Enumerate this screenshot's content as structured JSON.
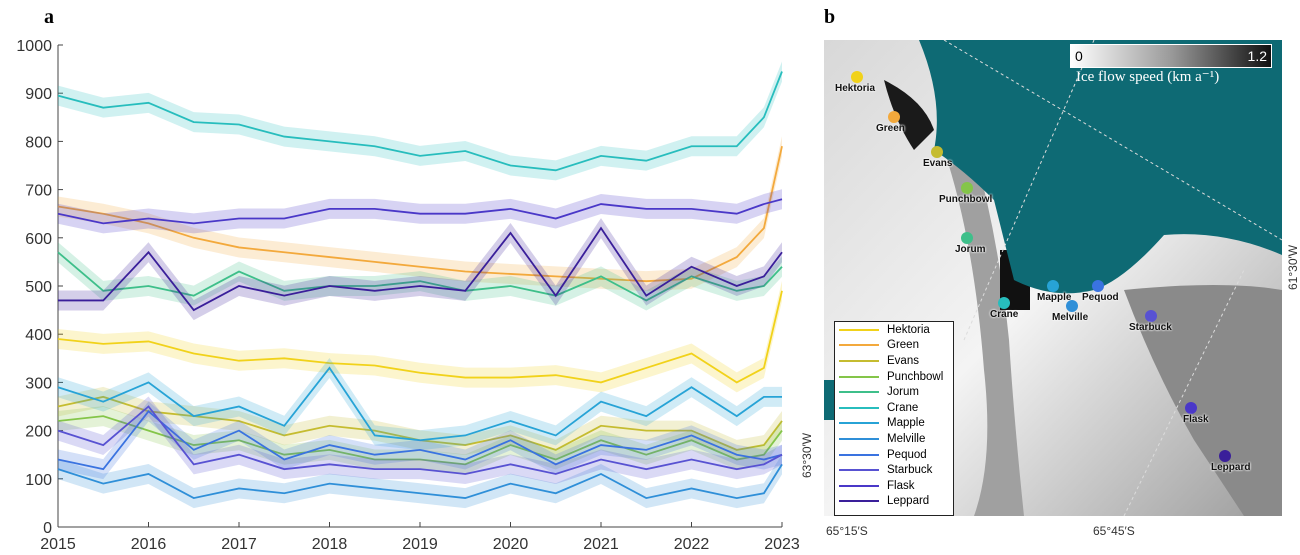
{
  "panel_a_label": "a",
  "panel_b_label": "b",
  "chart_data": {
    "type": "line",
    "xlim": [
      2015,
      2023
    ],
    "ylim": [
      0,
      1000
    ],
    "xticks": [
      2015,
      2016,
      2017,
      2018,
      2019,
      2020,
      2021,
      2022,
      2023
    ],
    "yticks": [
      0,
      100,
      200,
      300,
      400,
      500,
      600,
      700,
      800,
      900,
      1000
    ],
    "xlabel": "",
    "ylabel": "",
    "grid": false,
    "legend_position": "bottom-left of panel b",
    "series": [
      {
        "name": "Hektoria",
        "color": "#f1d21a",
        "x": [
          2015,
          2015.5,
          2016,
          2016.5,
          2017,
          2017.5,
          2018,
          2018.5,
          2019,
          2019.5,
          2020,
          2020.5,
          2021,
          2021.5,
          2022,
          2022.5,
          2022.8,
          2023
        ],
        "values": [
          390,
          380,
          385,
          360,
          345,
          350,
          340,
          335,
          320,
          310,
          310,
          315,
          300,
          330,
          360,
          300,
          330,
          490
        ]
      },
      {
        "name": "Green",
        "color": "#f3a93c",
        "x": [
          2015,
          2015.5,
          2016,
          2016.5,
          2017,
          2017.5,
          2018,
          2018.5,
          2019,
          2019.5,
          2020,
          2020.5,
          2021,
          2021.5,
          2022,
          2022.5,
          2022.8,
          2023
        ],
        "values": [
          665,
          650,
          630,
          600,
          580,
          570,
          560,
          550,
          540,
          530,
          525,
          520,
          515,
          510,
          515,
          560,
          620,
          790
        ]
      },
      {
        "name": "Evans",
        "color": "#c5bc30",
        "x": [
          2015,
          2015.5,
          2016,
          2016.5,
          2017,
          2017.5,
          2018,
          2018.5,
          2019,
          2019.5,
          2020,
          2020.5,
          2021,
          2021.5,
          2022,
          2022.5,
          2022.8,
          2023
        ],
        "values": [
          250,
          270,
          240,
          230,
          220,
          190,
          210,
          200,
          180,
          170,
          190,
          160,
          210,
          200,
          200,
          160,
          170,
          220
        ]
      },
      {
        "name": "Punchbowl",
        "color": "#84c549",
        "x": [
          2015,
          2015.5,
          2016,
          2016.5,
          2017,
          2017.5,
          2018,
          2018.5,
          2019,
          2019.5,
          2020,
          2020.5,
          2021,
          2021.5,
          2022,
          2022.5,
          2022.8,
          2023
        ],
        "values": [
          220,
          230,
          200,
          170,
          180,
          150,
          160,
          140,
          140,
          130,
          170,
          140,
          180,
          150,
          180,
          140,
          150,
          200
        ]
      },
      {
        "name": "Jorum",
        "color": "#3ebf8a",
        "x": [
          2015,
          2015.5,
          2016,
          2016.5,
          2017,
          2017.5,
          2018,
          2018.5,
          2019,
          2019.5,
          2020,
          2020.5,
          2021,
          2021.5,
          2022,
          2022.5,
          2022.8,
          2023
        ],
        "values": [
          570,
          490,
          500,
          480,
          530,
          490,
          500,
          500,
          510,
          490,
          500,
          480,
          520,
          470,
          520,
          490,
          500,
          540
        ]
      },
      {
        "name": "Crane",
        "color": "#27bdbd",
        "x": [
          2015,
          2015.5,
          2016,
          2016.5,
          2017,
          2017.5,
          2018,
          2018.5,
          2019,
          2019.5,
          2020,
          2020.5,
          2021,
          2021.5,
          2022,
          2022.5,
          2022.8,
          2023
        ],
        "values": [
          895,
          870,
          880,
          840,
          835,
          810,
          800,
          790,
          770,
          780,
          750,
          740,
          770,
          760,
          790,
          790,
          850,
          945
        ]
      },
      {
        "name": "Mapple",
        "color": "#27a3d6",
        "x": [
          2015,
          2015.5,
          2016,
          2016.5,
          2017,
          2017.5,
          2018,
          2018.5,
          2019,
          2019.5,
          2020,
          2020.5,
          2021,
          2021.5,
          2022,
          2022.5,
          2022.8,
          2023
        ],
        "values": [
          290,
          260,
          300,
          230,
          250,
          210,
          330,
          190,
          180,
          190,
          220,
          190,
          260,
          230,
          290,
          230,
          270,
          270
        ]
      },
      {
        "name": "Melville",
        "color": "#2f8fd8",
        "x": [
          2015,
          2015.5,
          2016,
          2016.5,
          2017,
          2017.5,
          2018,
          2018.5,
          2019,
          2019.5,
          2020,
          2020.5,
          2021,
          2021.5,
          2022,
          2022.5,
          2022.8,
          2023
        ],
        "values": [
          120,
          90,
          110,
          60,
          80,
          70,
          90,
          80,
          70,
          60,
          90,
          70,
          110,
          60,
          80,
          60,
          70,
          130
        ]
      },
      {
        "name": "Pequod",
        "color": "#3a73e0",
        "x": [
          2015,
          2015.5,
          2016,
          2016.5,
          2017,
          2017.5,
          2018,
          2018.5,
          2019,
          2019.5,
          2020,
          2020.5,
          2021,
          2021.5,
          2022,
          2022.5,
          2022.8,
          2023
        ],
        "values": [
          140,
          120,
          240,
          160,
          200,
          140,
          170,
          150,
          160,
          140,
          180,
          130,
          170,
          160,
          190,
          150,
          140,
          150
        ]
      },
      {
        "name": "Starbuck",
        "color": "#5852d2",
        "x": [
          2015,
          2015.5,
          2016,
          2016.5,
          2017,
          2017.5,
          2018,
          2018.5,
          2019,
          2019.5,
          2020,
          2020.5,
          2021,
          2021.5,
          2022,
          2022.5,
          2022.8,
          2023
        ],
        "values": [
          200,
          170,
          250,
          130,
          150,
          120,
          130,
          120,
          120,
          110,
          130,
          110,
          140,
          120,
          140,
          120,
          130,
          150
        ]
      },
      {
        "name": "Flask",
        "color": "#4a38c8",
        "x": [
          2015,
          2015.5,
          2016,
          2016.5,
          2017,
          2017.5,
          2018,
          2018.5,
          2019,
          2019.5,
          2020,
          2020.5,
          2021,
          2021.5,
          2022,
          2022.5,
          2022.8,
          2023
        ],
        "values": [
          650,
          630,
          640,
          630,
          640,
          640,
          660,
          660,
          650,
          650,
          660,
          640,
          670,
          660,
          660,
          650,
          670,
          680
        ]
      },
      {
        "name": "Leppard",
        "color": "#3a1f9a",
        "x": [
          2015,
          2015.5,
          2016,
          2016.5,
          2017,
          2017.5,
          2018,
          2018.5,
          2019,
          2019.5,
          2020,
          2020.5,
          2021,
          2021.5,
          2022,
          2022.5,
          2022.8,
          2023
        ],
        "values": [
          470,
          470,
          570,
          450,
          500,
          480,
          500,
          490,
          500,
          490,
          610,
          480,
          620,
          480,
          540,
          500,
          520,
          570
        ]
      }
    ]
  },
  "map": {
    "colorbar_min": "0",
    "colorbar_max": "1.2",
    "colorbar_title": "Ice flow speed (km a⁻¹)",
    "ocean_color": "#0e6a74",
    "coord_bottom_left": "65°15′S",
    "coord_bottom_mid": "65°45′S",
    "coord_left": "63°30′W",
    "coord_right": "61°30′W",
    "glaciers": [
      {
        "name": "Hektoria",
        "color": "#f1d21a"
      },
      {
        "name": "Green",
        "color": "#f3a93c"
      },
      {
        "name": "Evans",
        "color": "#c5bc30"
      },
      {
        "name": "Punchbowl",
        "color": "#84c549"
      },
      {
        "name": "Jorum",
        "color": "#3ebf8a"
      },
      {
        "name": "Crane",
        "color": "#27bdbd"
      },
      {
        "name": "Mapple",
        "color": "#27a3d6"
      },
      {
        "name": "Melville",
        "color": "#2f8fd8"
      },
      {
        "name": "Pequod",
        "color": "#3a73e0"
      },
      {
        "name": "Starbuck",
        "color": "#5852d2"
      },
      {
        "name": "Flask",
        "color": "#4a38c8"
      },
      {
        "name": "Leppard",
        "color": "#3a1f9a"
      }
    ]
  }
}
